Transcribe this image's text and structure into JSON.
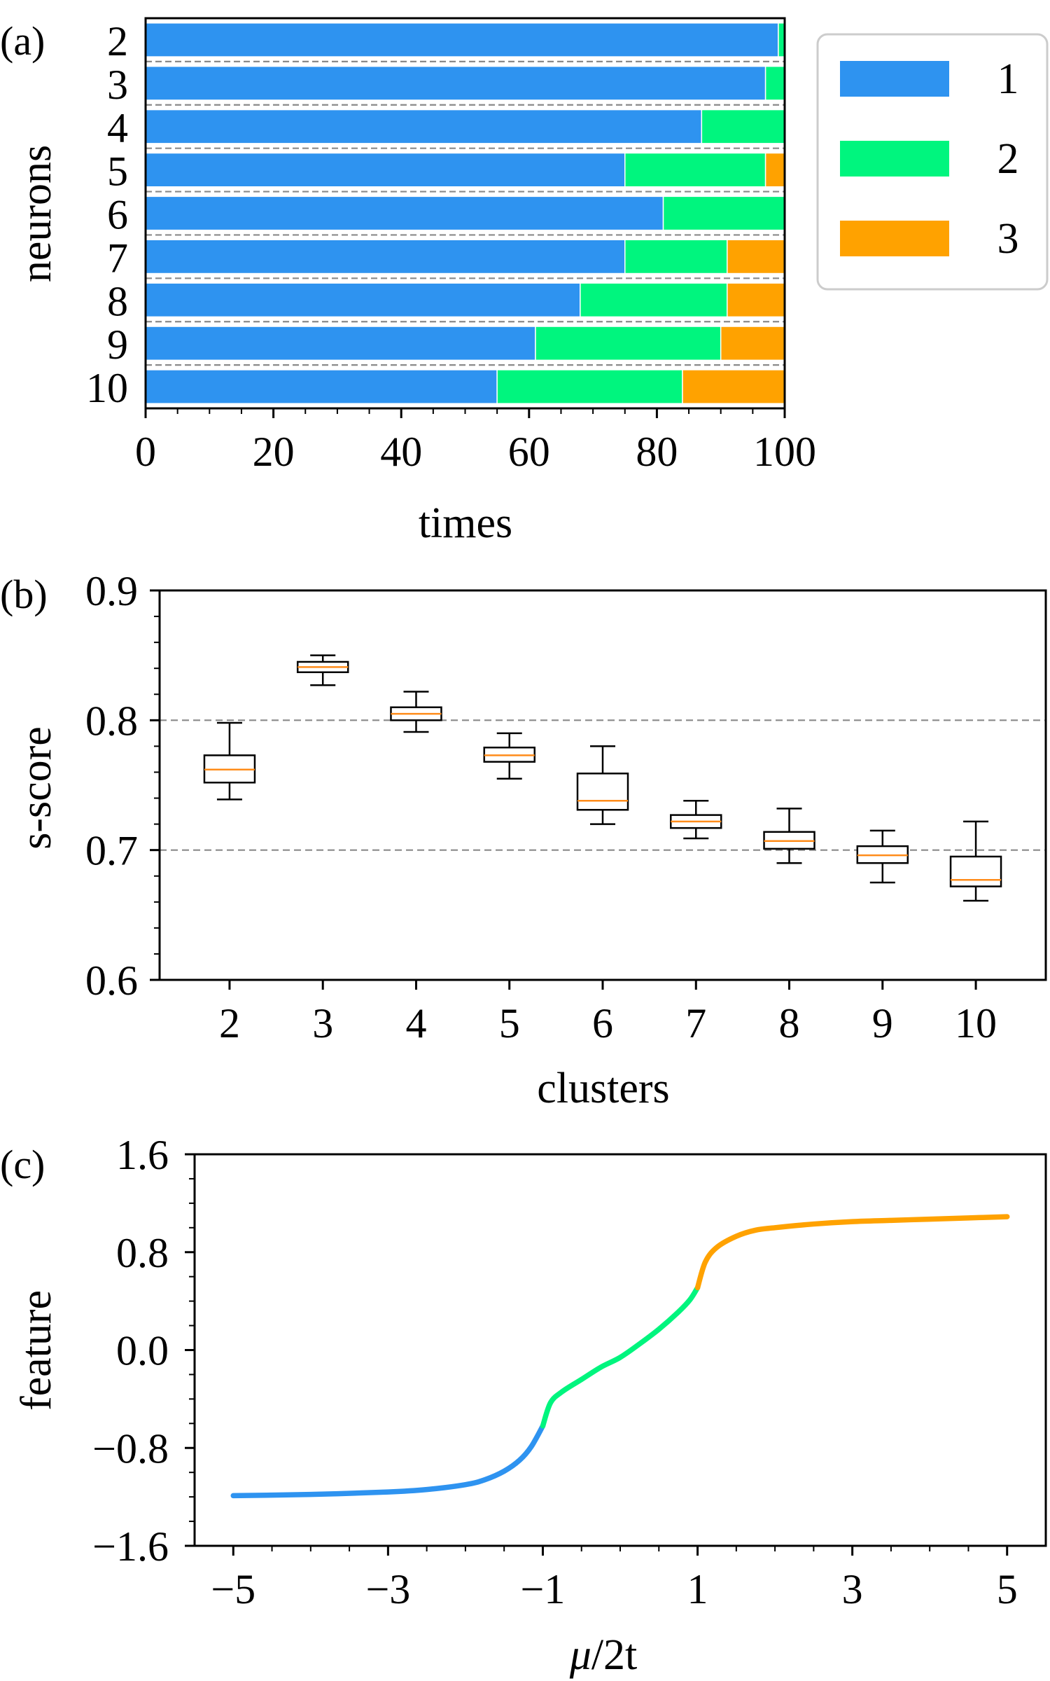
{
  "colors": {
    "c1": "#2E93F0",
    "c2": "#00F57E",
    "c3": "#FFA200",
    "grid": "#8a8a8a",
    "median": "#FF8C1A"
  },
  "chart_data": [
    {
      "type": "bar",
      "orientation": "horizontal-stacked",
      "panel_label": "(a)",
      "xlabel": "times",
      "ylabel": "neurons",
      "xlim": [
        0,
        100
      ],
      "xticks": [
        "0",
        "20",
        "40",
        "60",
        "80",
        "100"
      ],
      "xtick_values": [
        0,
        20,
        40,
        60,
        80,
        100
      ],
      "categories": [
        "2",
        "3",
        "4",
        "5",
        "6",
        "7",
        "8",
        "9",
        "10"
      ],
      "series": [
        {
          "name": "1",
          "color_key": "c1",
          "values": [
            99,
            97,
            87,
            75,
            81,
            75,
            68,
            61,
            55
          ]
        },
        {
          "name": "2",
          "color_key": "c2",
          "values": [
            1,
            3,
            13,
            22,
            19,
            16,
            23,
            29,
            29
          ]
        },
        {
          "name": "3",
          "color_key": "c3",
          "values": [
            0,
            0,
            0,
            3,
            0,
            9,
            9,
            10,
            16
          ]
        }
      ],
      "legend": [
        "1",
        "2",
        "3"
      ],
      "legend_position": "right"
    },
    {
      "type": "box",
      "panel_label": "(b)",
      "xlabel": "clusters",
      "ylabel": "s-score",
      "ylim": [
        0.6,
        0.9
      ],
      "yticks": [
        "0.6",
        "0.7",
        "0.8",
        "0.9"
      ],
      "ytick_values": [
        0.6,
        0.7,
        0.8,
        0.9
      ],
      "reference_lines": [
        0.7,
        0.8
      ],
      "categories": [
        "2",
        "3",
        "4",
        "5",
        "6",
        "7",
        "8",
        "9",
        "10"
      ],
      "boxes": [
        {
          "min": 0.739,
          "q1": 0.752,
          "median": 0.762,
          "q3": 0.773,
          "max": 0.798
        },
        {
          "min": 0.827,
          "q1": 0.837,
          "median": 0.841,
          "q3": 0.845,
          "max": 0.85
        },
        {
          "min": 0.791,
          "q1": 0.8,
          "median": 0.805,
          "q3": 0.81,
          "max": 0.822
        },
        {
          "min": 0.755,
          "q1": 0.768,
          "median": 0.773,
          "q3": 0.779,
          "max": 0.79
        },
        {
          "min": 0.72,
          "q1": 0.731,
          "median": 0.738,
          "q3": 0.759,
          "max": 0.78
        },
        {
          "min": 0.709,
          "q1": 0.717,
          "median": 0.722,
          "q3": 0.727,
          "max": 0.738
        },
        {
          "min": 0.69,
          "q1": 0.701,
          "median": 0.707,
          "q3": 0.714,
          "max": 0.732
        },
        {
          "min": 0.675,
          "q1": 0.69,
          "median": 0.696,
          "q3": 0.703,
          "max": 0.715
        },
        {
          "min": 0.661,
          "q1": 0.672,
          "median": 0.677,
          "q3": 0.695,
          "max": 0.722
        }
      ]
    },
    {
      "type": "line",
      "panel_label": "(c)",
      "xlabel": "μ/2t",
      "xlabel_var": "μ",
      "xlabel_rest": "/2t",
      "ylabel": "feature",
      "xlim": [
        -5.5,
        5.5
      ],
      "ylim": [
        -1.6,
        1.6
      ],
      "xticks": [
        "−5",
        "−3",
        "−1",
        "1",
        "3",
        "5"
      ],
      "xtick_values": [
        -5,
        -3,
        -1,
        1,
        3,
        5
      ],
      "yticks": [
        "1.6",
        "0.8",
        "0.0",
        "−0.8",
        "−1.6"
      ],
      "ytick_values": [
        1.6,
        0.8,
        0.0,
        -0.8,
        -1.6
      ],
      "segments": [
        {
          "color_key": "c1",
          "x": [
            -5.0,
            -4.0,
            -3.0,
            -2.5,
            -2.0,
            -1.75,
            -1.5,
            -1.3,
            -1.15,
            -1.0
          ],
          "y": [
            -1.19,
            -1.18,
            -1.16,
            -1.14,
            -1.1,
            -1.06,
            -0.99,
            -0.9,
            -0.79,
            -0.62
          ]
        },
        {
          "color_key": "c2",
          "x": [
            -1.0,
            -0.9,
            -0.75,
            -0.5,
            -0.25,
            0.0,
            0.25,
            0.5,
            0.75,
            0.9,
            1.0
          ],
          "y": [
            -0.62,
            -0.43,
            -0.34,
            -0.24,
            -0.14,
            -0.06,
            0.05,
            0.17,
            0.31,
            0.41,
            0.51
          ]
        },
        {
          "color_key": "c3",
          "x": [
            1.0,
            1.1,
            1.25,
            1.5,
            1.75,
            2.0,
            2.5,
            3.0,
            3.5,
            4.0,
            4.5,
            5.0
          ],
          "y": [
            0.51,
            0.72,
            0.84,
            0.93,
            0.98,
            1.0,
            1.03,
            1.05,
            1.06,
            1.07,
            1.08,
            1.09
          ]
        }
      ]
    }
  ]
}
